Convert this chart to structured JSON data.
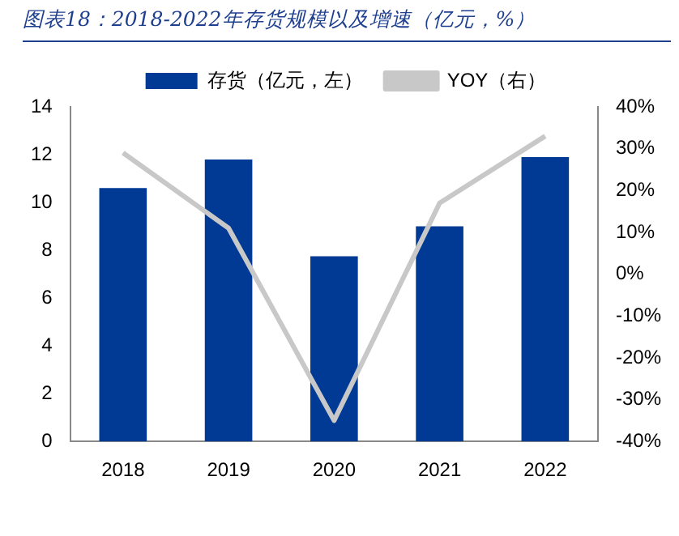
{
  "chart_data": {
    "type": "bar",
    "title": "图表18：2018-2022年存货规模以及增速（亿元，%）",
    "categories": [
      "2018",
      "2019",
      "2020",
      "2021",
      "2022"
    ],
    "series": [
      {
        "name": "存货（亿元，左）",
        "color": "#003a94",
        "values": [
          10.6,
          11.8,
          7.75,
          9.0,
          11.9
        ]
      },
      {
        "name": "YOY（右）",
        "type": "line",
        "axis": "y2",
        "color": "#c8c8c8",
        "values": [
          29,
          11,
          -35,
          17,
          33
        ]
      }
    ],
    "ylim": [
      0,
      14
    ],
    "yticks": [
      0,
      2,
      4,
      6,
      8,
      10,
      12,
      14
    ],
    "y2lim": [
      -40,
      40
    ],
    "y2ticks": [
      {
        "value": -40,
        "label": "-40%"
      },
      {
        "value": -30,
        "label": "-30%"
      },
      {
        "value": -20,
        "label": "-20%"
      },
      {
        "value": -10,
        "label": "-10%"
      },
      {
        "value": 0,
        "label": "0%"
      },
      {
        "value": 10,
        "label": "10%"
      },
      {
        "value": 20,
        "label": "20%"
      },
      {
        "value": 30,
        "label": "30%"
      },
      {
        "value": 40,
        "label": "40%"
      }
    ],
    "legend": "top",
    "grid": false,
    "marker": "none"
  }
}
